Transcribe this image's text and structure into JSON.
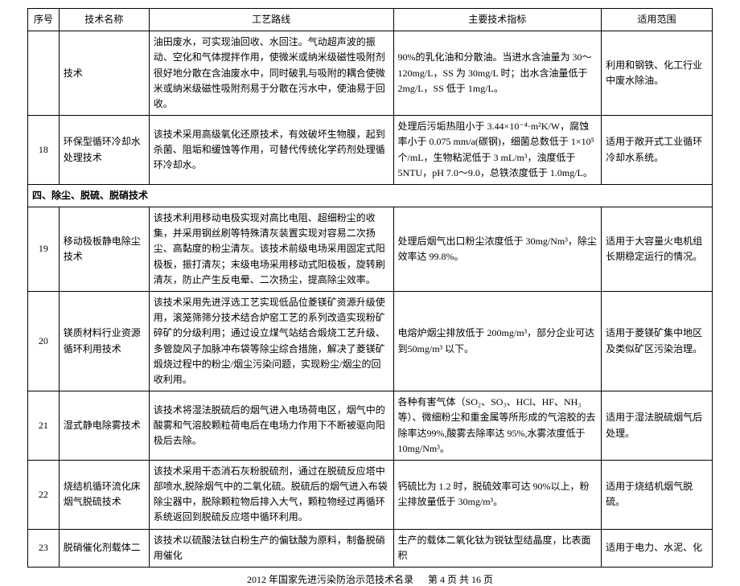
{
  "header": {
    "col1": "序号",
    "col2": "技术名称",
    "col3": "工艺路线",
    "col4": "主要技术指标",
    "col5": "适用范围"
  },
  "rows": [
    {
      "num": "",
      "name": "技术",
      "route": "油田废水，可实现油回收、水回注。气动超声波的振动、空化和气体搅拌作用，使微米或纳米级磁性吸附剂很好地分散在含油废水中，同时破乳与吸附的耦合使微米或纳米级磁性吸附剂易于分散在污水中，使油易于回收。",
      "metric": "90%的乳化油和分散油。当进水含油量为 30～120mg/L，SS 为 30mg/L 时；出水含油量低于2mg/L，SS 低于 1mg/L。",
      "scope": "利用和钢铁、化工行业中废水除油。"
    },
    {
      "num": "18",
      "name": "环保型循环冷却水处理技术",
      "route": "该技术采用高级氧化还原技术，有效破坏生物膜，起到杀菌、阻垢和缓蚀等作用，可替代传统化学药剂处理循环冷却水。",
      "metric": "处理后污垢热阻小于 3.44×10⁻⁴·m²K/W，腐蚀率小于 0.075 mm/a(碳钢)，细菌总数低于 1×10⁵个/mL，生物粘泥低于 3 mL/m³，浊度低于 5NTU，pH 7.0～9.0，总铁浓度低于 1.0mg/L。",
      "scope": "适用于敞开式工业循环冷却水系统。"
    }
  ],
  "section4": "四、除尘、脱硫、脱硝技术",
  "rows2": [
    {
      "num": "19",
      "name": "移动极板静电除尘技术",
      "route": "该技术利用移动电极实现对高比电阻、超细粉尘的收集，并采用钢丝刷等特殊清灰装置实现对容易二次扬尘、高黏度的粉尘清灰。该技术前级电场采用固定式阳极板，振打清灰；末级电场采用移动式阳极板，旋转刷清灰，防止产生反电晕、二次扬尘，提高除尘效率。",
      "metric": "处理后烟气出口粉尘浓度低于 30mg/Nm³，除尘效率达 99.8%。",
      "scope": "适用于大容量火电机组长期稳定运行的情况。"
    },
    {
      "num": "20",
      "name": "镁质材料行业资源循环利用技术",
      "route": "该技术采用先进浮选工艺实现低品位菱镁矿资源升级使用，滚笼筛筛分技术结合炉窑工艺的系列改造实现粉矿碎矿的分级利用；通过设立煤气站结合煅烧工艺升级、多管旋风子加脉冲布袋等除尘综合措施，解决了菱镁矿煅烧过程中的粉尘/烟尘污染问题，实现粉尘/烟尘的回收利用。",
      "metric": "电熔炉烟尘排放低于 200mg/m³，部分企业可达到50mg/m³ 以下。",
      "scope": "适用于菱镁矿集中地区及类似矿区污染治理。"
    },
    {
      "num": "21",
      "name": "湿式静电除雾技术",
      "route": "该技术将湿法脱硫后的烟气进入电场荷电区，烟气中的酸雾和气溶胶颗粒荷电后在电场力作用下不断被驱向阳极后去除。",
      "metric": "各种有害气体（SO₂、SO₃、HCl、HF、NH₃等）、微细粉尘和重金属等所形成的气溶胶的去除率达99%,酸雾去除率达 95%,水雾浓度低于 10mg/Nm³。",
      "scope": "适用于湿法脱硫烟气后处理。"
    },
    {
      "num": "22",
      "name": "烧结机循环流化床烟气脱硫技术",
      "route": "该技术采用干态消石灰粉脱硫剂，通过在脱硫反应塔中部喷水,脱除烟气中的二氧化硫。脱硫后的烟气进入布袋除尘器中，脱除颗粒物后排入大气，颗粒物经过再循环系统返回到脱硫反应塔中循环利用。",
      "metric": "钙硫比为 1.2 时，脱硫效率可达 90%以上，粉尘排放量低于 30mg/m³。",
      "scope": "适用于烧结机烟气脱硫。"
    },
    {
      "num": "23",
      "name": "脱硝催化剂载体二",
      "route": "该技术以硫酸法钛白粉生产的偏钛酸为原料，制备脱硝用催化",
      "metric": "生产的载体二氧化钛为锐钛型结晶度，比表面积",
      "scope": "适用于电力、水泥、化"
    }
  ],
  "footer": {
    "title": "2012 年国家先进污染防治示范技术名录",
    "page": "第 4 页 共 16 页"
  }
}
